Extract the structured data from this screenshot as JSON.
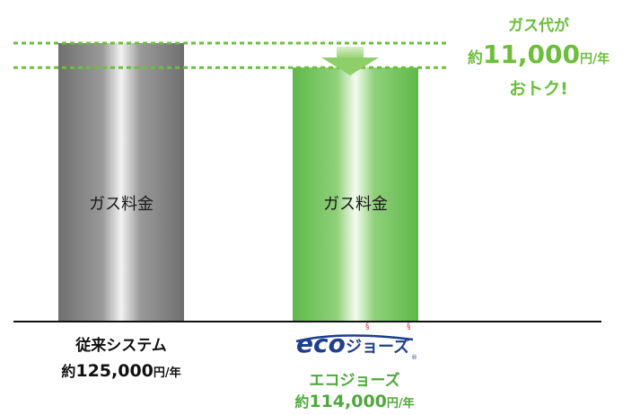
{
  "chart_data": {
    "type": "bar",
    "categories": [
      "従来システム",
      "エコジョーズ"
    ],
    "values": [
      125000,
      114000
    ],
    "bar_labels": [
      "ガス料金",
      "ガス料金"
    ],
    "price_prefix": "約",
    "price_values": [
      "125,000",
      "114,000"
    ],
    "price_unit": "円/年",
    "difference": 11000,
    "colors": {
      "conventional": "#7f7f7f",
      "eco": "#74c15a",
      "annotation": "#6bbf3a",
      "eco_text": "#4ea93a"
    }
  },
  "annotation": {
    "line1": "ガス代が",
    "prefix": "約",
    "amount": "11,000",
    "unit": "円/年",
    "line3": "おトク!"
  },
  "logo": {
    "text": "ecoジョーズ"
  }
}
